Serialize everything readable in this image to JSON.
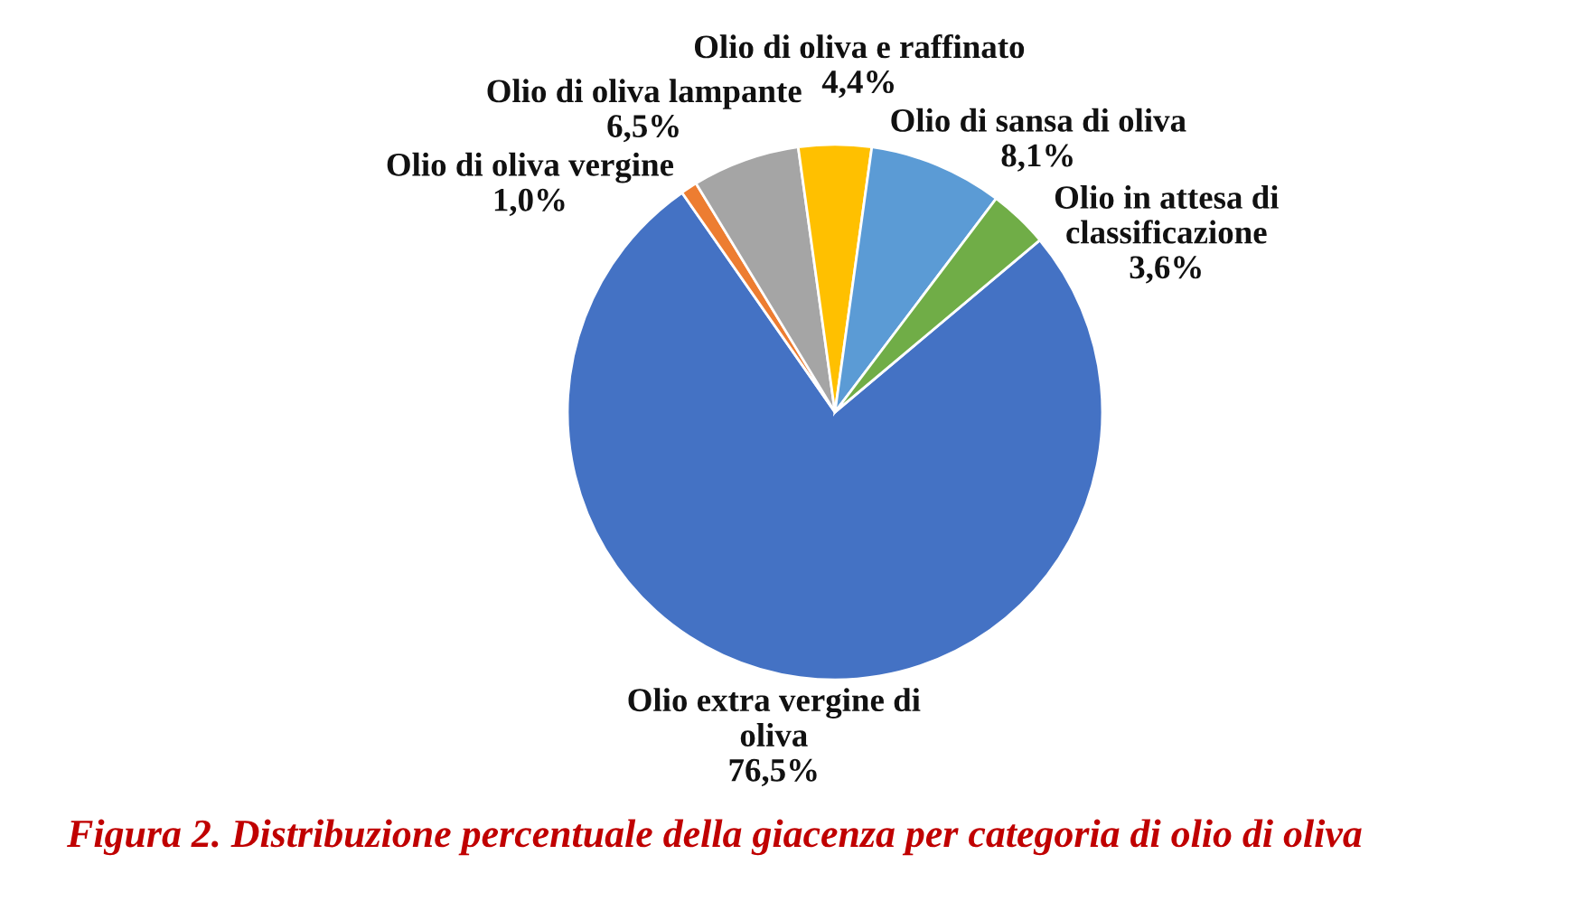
{
  "chart_data": {
    "type": "pie",
    "title": "Figura 2. Distribuzione percentuale della giacenza per categoria di olio di oliva",
    "categories": [
      "Olio extra vergine di\noliva",
      "Olio di oliva vergine",
      "Olio di oliva lampante",
      "Olio di oliva e raffinato",
      "Olio di sansa di oliva",
      "Olio in attesa di\nclassificazione"
    ],
    "values": [
      76.5,
      1.0,
      6.5,
      4.4,
      8.1,
      3.6
    ],
    "colors": [
      "#4472c4",
      "#ed7d31",
      "#a5a5a5",
      "#ffc000",
      "#5b9bd5",
      "#70ad47"
    ],
    "value_labels": [
      "76,5%",
      "1,0%",
      "6,5%",
      "4,4%",
      "8,1%",
      "3,6%"
    ]
  }
}
